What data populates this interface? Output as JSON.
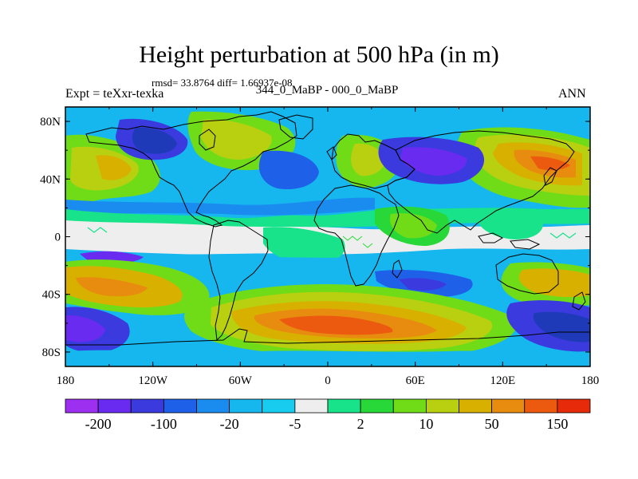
{
  "title": "Height perturbation at 500 hPa (in m)",
  "stats": "rmsd= 33.8764 diff= 1.66937e-08",
  "experiment": "Expt = teXxr-texka",
  "difference": "344_0_MaBP - 000_0_MaBP",
  "season": "ANN",
  "y_axis": {
    "labels": [
      "80N",
      "40N",
      "0",
      "40S",
      "80S"
    ],
    "values": [
      80,
      40,
      0,
      -40,
      -80
    ]
  },
  "x_axis": {
    "labels": [
      "180",
      "120W",
      "60W",
      "0",
      "60E",
      "120E",
      "180"
    ],
    "values": [
      -180,
      -120,
      -60,
      0,
      60,
      120,
      180
    ]
  },
  "colorbar": {
    "labels": [
      "-200",
      "-100",
      "-20",
      "-5",
      "2",
      "10",
      "50",
      "150"
    ],
    "colors": [
      "#9d2ff0",
      "#6a2bf0",
      "#3a3adf",
      "#1f60e8",
      "#1a8cf0",
      "#16b6ee",
      "#18ccf0",
      "#eeeeee",
      "#18e28a",
      "#28d838",
      "#70dc18",
      "#b8d010",
      "#d8b000",
      "#e88c10",
      "#ec5a10",
      "#e62a0a"
    ]
  }
}
